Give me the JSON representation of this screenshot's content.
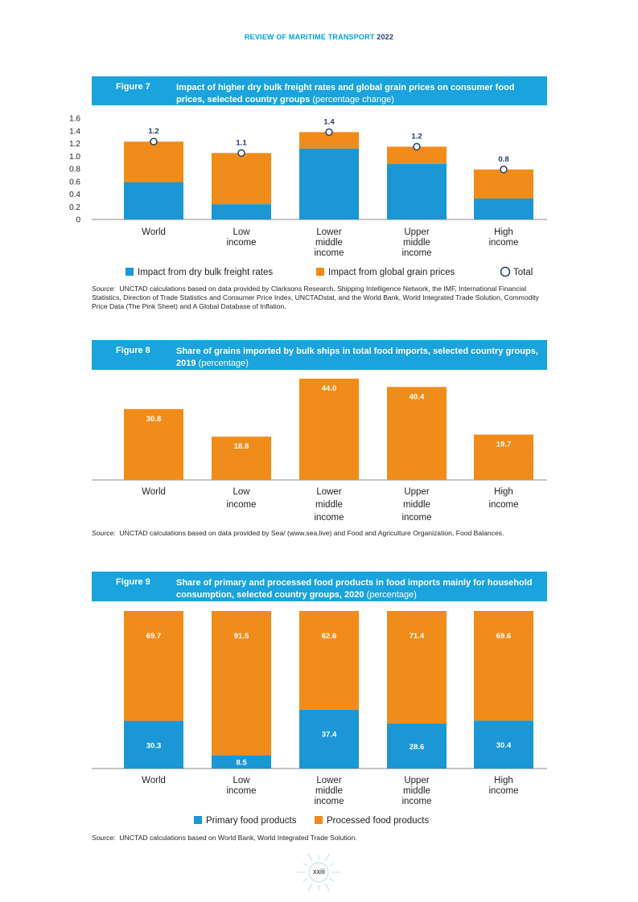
{
  "header": {
    "prefix": "REVIEW OF MARITIME TRANSPORT",
    "year": "2022"
  },
  "page_number": "xxiii",
  "colors": {
    "blue": "#1b97d5",
    "orange": "#f08c1a",
    "header_blue": "#1aa3dc",
    "total_marker": "#1f3d6e"
  },
  "figures": [
    {
      "number": "Figure 7",
      "title": "Impact of higher dry bulk freight rates and global grain prices on consumer food prices, selected country groups",
      "unit": "(percentage change)",
      "source": "UNCTAD calculations based on data provided by Clarksons Research, Shipping Intelligence Network, the IMF, International Financial Statistics, Direction of Trade Statistics and Consumer Price Index, UNCTADstat, and the World Bank, World Integrated Trade Solution, Commodity Price Data (The Pink Sheet) and A Global Database of Inflation.",
      "legend": [
        "Impact from dry bulk freight rates",
        "Impact from global grain prices",
        "Total"
      ]
    },
    {
      "number": "Figure 8",
      "title": "Share of grains imported by bulk ships in total food imports, selected country groups, 2019",
      "unit": "(percentage)",
      "source": "UNCTAD calculations based on data provided by Sea/ (www.sea.live) and Food and Agriculture Organization, Food Balances."
    },
    {
      "number": "Figure 9",
      "title": "Share of primary and processed food products in food imports mainly for household consumption, selected country groups, 2020",
      "unit": "(percentage)",
      "source": "UNCTAD calculations based on World Bank, World Integrated Trade Solution.",
      "legend": [
        "Primary food products",
        "Processed food products"
      ]
    }
  ],
  "source_label": "Source:",
  "chart_data": [
    {
      "type": "bar",
      "stacked": true,
      "categories": [
        [
          "World"
        ],
        [
          "Low",
          "income"
        ],
        [
          "Lower",
          "middle",
          "income"
        ],
        [
          "Upper",
          "middle",
          "income"
        ],
        [
          "High",
          "income"
        ]
      ],
      "series": [
        {
          "name": "Impact from dry bulk freight rates",
          "values": [
            0.59,
            0.24,
            1.12,
            0.88,
            0.33
          ]
        },
        {
          "name": "Impact from global grain prices",
          "values": [
            0.64,
            0.81,
            0.26,
            0.27,
            0.46
          ]
        }
      ],
      "totals": [
        1.23,
        1.05,
        1.38,
        1.15,
        0.79
      ],
      "total_labels": [
        "1.2",
        "1.1",
        "1.4",
        "1.2",
        "0.8"
      ],
      "ylim": [
        0,
        1.6
      ],
      "yticks": [
        "0",
        "0.2",
        "0.4",
        "0.6",
        "0.8",
        "1.0",
        "1.2",
        "1.4",
        "1.6"
      ],
      "legend": "bottom"
    },
    {
      "type": "bar",
      "categories": [
        [
          "World"
        ],
        [
          "Low",
          "income"
        ],
        [
          "Lower",
          "middle",
          "income"
        ],
        [
          "Upper",
          "middle",
          "income"
        ],
        [
          "High",
          "income"
        ]
      ],
      "values": [
        30.8,
        18.8,
        44.0,
        40.4,
        19.7
      ],
      "labels": [
        "30.8",
        "18.8",
        "44.0",
        "40.4",
        "19.7"
      ],
      "ylim": [
        0,
        44.0
      ]
    },
    {
      "type": "bar",
      "stacked": true,
      "categories": [
        [
          "World"
        ],
        [
          "Low",
          "income"
        ],
        [
          "Lower",
          "middle",
          "income"
        ],
        [
          "Upper",
          "middle",
          "income"
        ],
        [
          "High",
          "income"
        ]
      ],
      "series": [
        {
          "name": "Primary food products",
          "values": [
            30.3,
            8.5,
            37.4,
            28.6,
            30.4
          ],
          "labels": [
            "30.3",
            "8.5",
            "37.4",
            "28.6",
            "30.4"
          ]
        },
        {
          "name": "Processed food products",
          "values": [
            69.7,
            91.5,
            62.6,
            71.4,
            69.6
          ],
          "labels": [
            "69.7",
            "91.5",
            "62.6",
            "71.4",
            "69.6"
          ]
        }
      ],
      "ylim": [
        0,
        100
      ],
      "legend": "bottom"
    }
  ]
}
